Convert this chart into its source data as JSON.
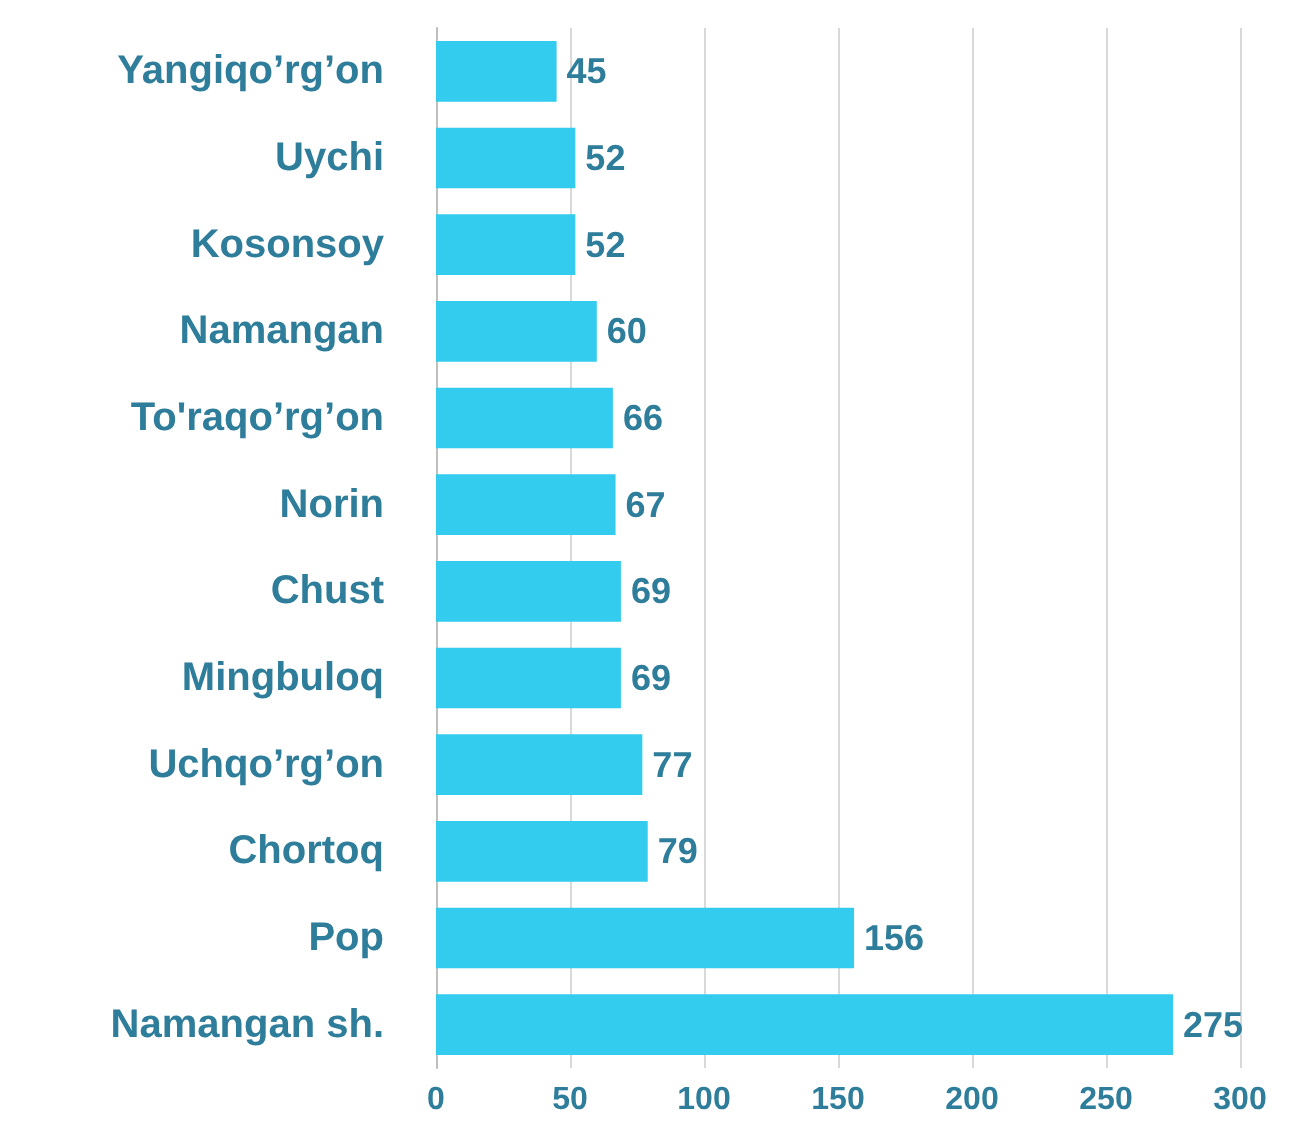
{
  "chart_data": {
    "type": "bar",
    "orientation": "horizontal",
    "categories": [
      "Yangiqo’rg’on",
      "Uychi",
      "Kosonsoy",
      "Namangan",
      "To'raqo’rg’on",
      "Norin",
      "Chust",
      "Mingbuloq",
      "Uchqo’rg’on",
      "Chortoq",
      "Pop",
      "Namangan sh."
    ],
    "values": [
      45,
      52,
      52,
      60,
      66,
      67,
      69,
      69,
      77,
      79,
      156,
      275
    ],
    "color": "#33ccee",
    "xlim": [
      0,
      300
    ],
    "xticks": [
      0,
      50,
      100,
      150,
      200,
      250,
      300
    ],
    "grid": "x",
    "data_labels": true
  }
}
